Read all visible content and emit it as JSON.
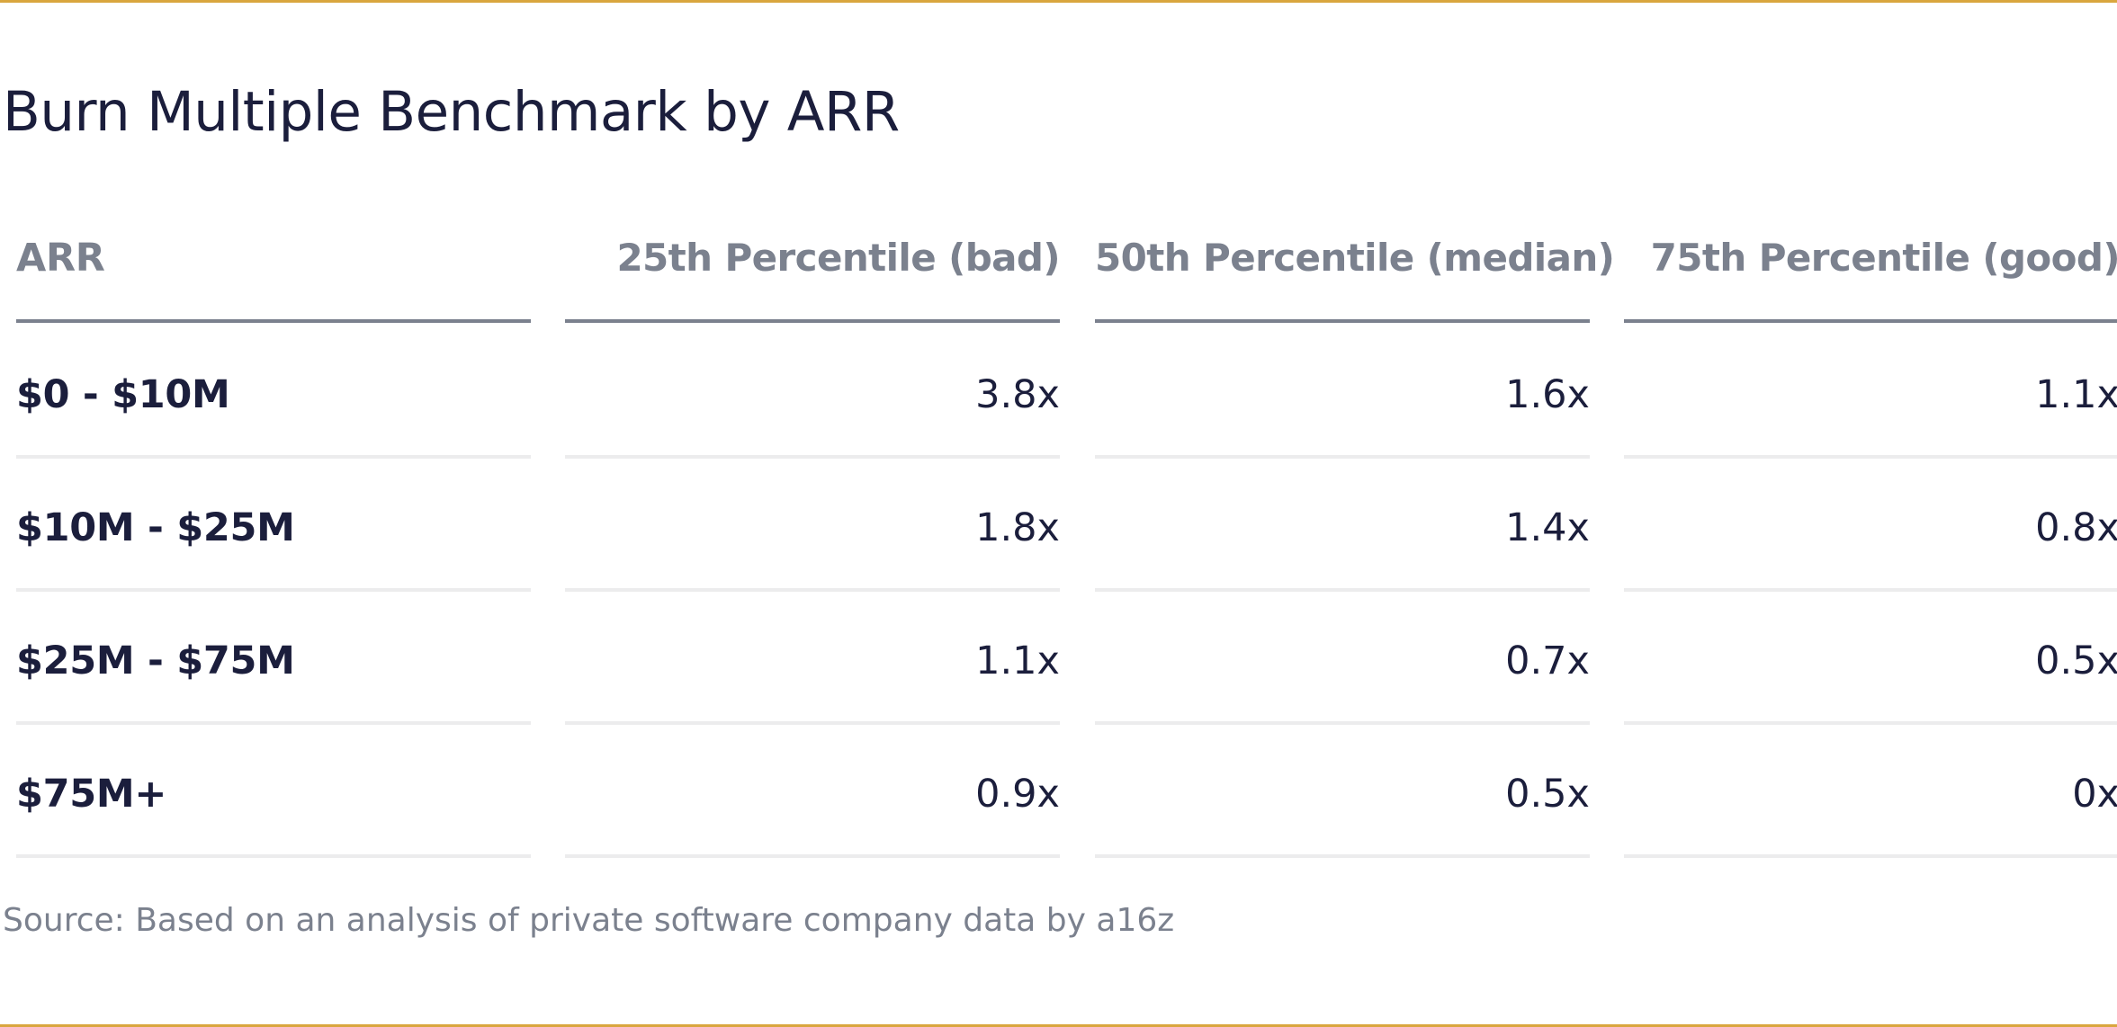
{
  "title": "Burn Multiple Benchmark by ARR",
  "columns": [
    "ARR",
    "25th Percentile (bad)",
    "50th Percentile (median)",
    "75th Percentile (good)"
  ],
  "rows": [
    [
      "$0 - $10M",
      "3.8x",
      "1.6x",
      "1.1x"
    ],
    [
      "$10M - $25M",
      "1.8x",
      "1.4x",
      "0.8x"
    ],
    [
      "$25M - $75M",
      "1.1x",
      "0.7x",
      "0.5x"
    ],
    [
      "$75M+",
      "0.9x",
      "0.5x",
      "0x"
    ]
  ],
  "source": "Source: Based on an analysis of private software company data by a16z",
  "colors": {
    "accent_rule": "#d9a63e",
    "text": "#1b1e3c",
    "muted": "#7b818e",
    "row_divider": "#ececed"
  }
}
